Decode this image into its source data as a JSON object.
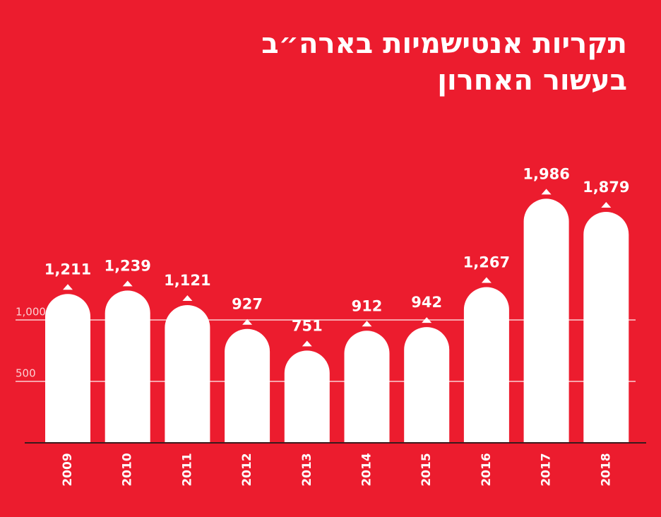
{
  "chart_data": {
    "type": "bar",
    "title": "תקריות אנטישמיות בארה״ב\nבעשור האחרון",
    "categories": [
      "2009",
      "2010",
      "2011",
      "2012",
      "2013",
      "2014",
      "2015",
      "2016",
      "2017",
      "2018"
    ],
    "values": [
      1211,
      1239,
      1121,
      927,
      751,
      912,
      942,
      1267,
      1986,
      1879
    ],
    "value_labels": [
      "1,211",
      "1,239",
      "1,121",
      "927",
      "751",
      "912",
      "942",
      "1,267",
      "1,986",
      "1,879"
    ],
    "color": "#ffffff",
    "ylim": [
      0,
      2500
    ],
    "yticks": [
      500,
      {
        "value": 1000,
        "label": "1,000"
      }
    ],
    "grid": true
  }
}
